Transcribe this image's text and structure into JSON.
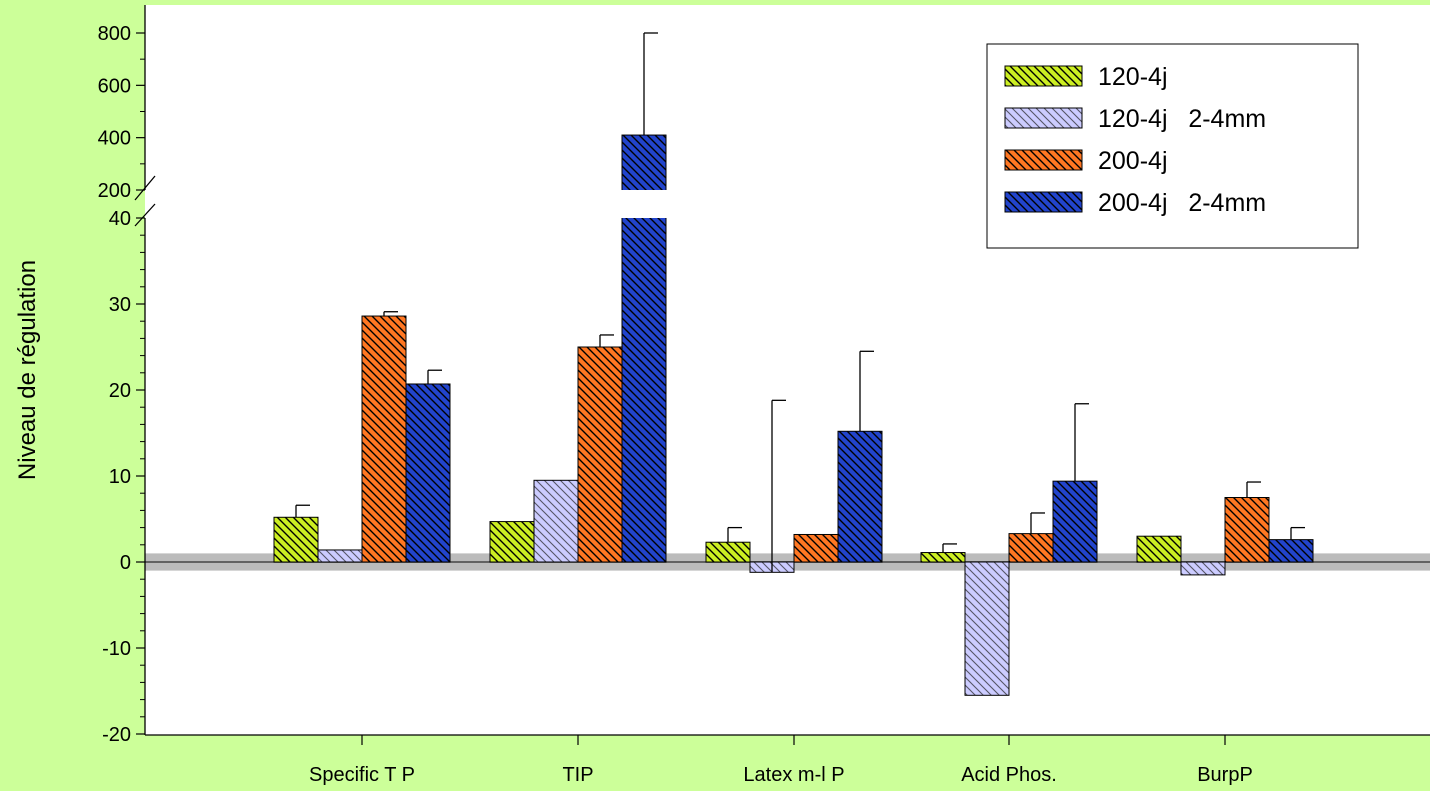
{
  "chart_data": {
    "type": "bar",
    "title": "",
    "xlabel": "",
    "ylabel": "Niveau de régulation",
    "categories": [
      "Specific T P",
      "TIP",
      "Latex m-l P",
      "Acid Phos.",
      "BurpP"
    ],
    "y_axis_lower": {
      "ylim": [
        -20,
        40
      ],
      "ticks": [
        "-20",
        "-10",
        "0",
        "10",
        "20",
        "30",
        "40"
      ]
    },
    "y_axis_upper": {
      "ylim": [
        200,
        800
      ],
      "ticks": [
        "200",
        "400",
        "600",
        "800"
      ]
    },
    "axis_break": "between 40 and 200",
    "zero_band": [
      -1,
      1
    ],
    "grid": false,
    "legend_position": "top-right",
    "series": [
      {
        "name": "120-4j",
        "color": "#ccee22",
        "values": [
          5.2,
          4.7,
          2.3,
          1.1,
          3.0
        ],
        "error": [
          1.4,
          null,
          1.7,
          1.0,
          null
        ]
      },
      {
        "name": "120-4j   2-4mm",
        "color": "#ccccff",
        "values": [
          1.4,
          9.5,
          -1.2,
          -15.5,
          -1.5
        ],
        "error": [
          null,
          null,
          20.0,
          null,
          null
        ]
      },
      {
        "name": "200-4j",
        "color": "#ff7722",
        "values": [
          28.6,
          25.0,
          3.2,
          3.3,
          7.5
        ],
        "error": [
          0.5,
          1.4,
          null,
          2.4,
          1.8
        ]
      },
      {
        "name": "200-4j   2-4mm",
        "color": "#2244cc",
        "values": [
          20.7,
          410,
          15.2,
          9.4,
          2.6
        ],
        "error": [
          1.6,
          400,
          9.3,
          9.0,
          1.4
        ]
      }
    ]
  }
}
